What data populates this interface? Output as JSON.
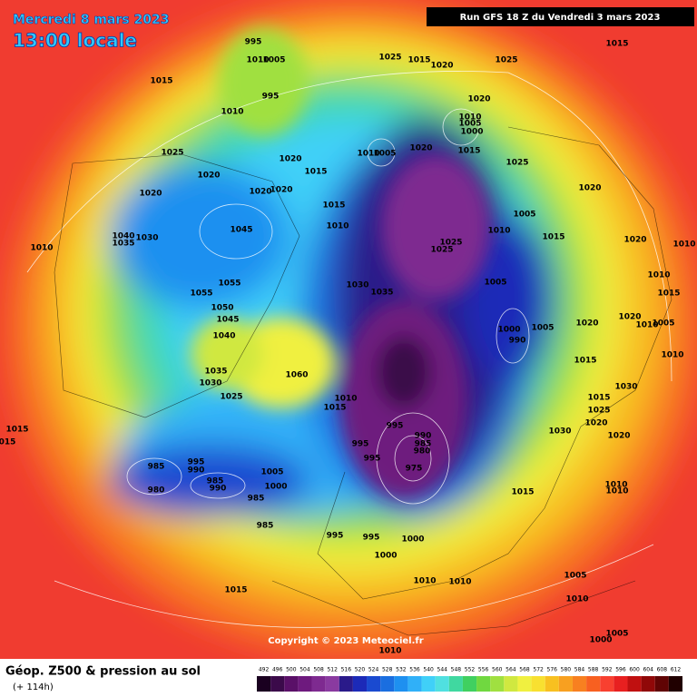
{
  "header": {
    "date": "Mercredi 8 mars 2023",
    "time": "13:00 locale",
    "run": "Run GFS 18 Z du Vendredi 3 mars 2023"
  },
  "copyright": "Copyright © 2023 Meteociel.fr",
  "legend": {
    "title": "Géop. Z500 & pression au sol",
    "lead": "(+ 114h)",
    "ticks": [
      492,
      496,
      500,
      504,
      508,
      512,
      516,
      520,
      524,
      528,
      532,
      536,
      540,
      544,
      548,
      552,
      556,
      560,
      564,
      568,
      572,
      576,
      580,
      584,
      588,
      592,
      596,
      600,
      604,
      608,
      612
    ],
    "colors": [
      "#1a0020",
      "#3b0a4a",
      "#5a1068",
      "#6e1a7e",
      "#7e2a90",
      "#8a3aa0",
      "#2a1a8a",
      "#1c2ab8",
      "#1a4ad0",
      "#1a6ee0",
      "#1e90f0",
      "#30b0f8",
      "#40d0f8",
      "#50e0e0",
      "#40d8a0",
      "#40d060",
      "#70d840",
      "#a0e040",
      "#d0e840",
      "#f0f040",
      "#f8e030",
      "#f8c020",
      "#f8a020",
      "#f88020",
      "#f86020",
      "#f84030",
      "#e82020",
      "#c01010",
      "#900808",
      "#600404",
      "#200000"
    ]
  },
  "pressure_labels": [
    "995",
    "1015",
    "1010",
    "1005",
    "995",
    "1010",
    "1025",
    "1020",
    "1020",
    "1020",
    "1020",
    "1020",
    "1015",
    "1015",
    "1010",
    "1025",
    "1015",
    "1020",
    "1025",
    "1015",
    "1020",
    "1010",
    "1005",
    "1000",
    "1015",
    "1010",
    "1005",
    "1020",
    "1025",
    "1020",
    "1005",
    "1010",
    "1015",
    "1020",
    "1010",
    "1025",
    "1025",
    "1005",
    "1030",
    "1035",
    "1045",
    "1040",
    "1035",
    "1030",
    "1010",
    "1055",
    "1055",
    "1050",
    "1045",
    "1040",
    "1035",
    "1030",
    "1060",
    "1025",
    "1010",
    "1015",
    "1000",
    "990",
    "1005",
    "1020",
    "1020",
    "1015",
    "1010",
    "1010",
    "1015",
    "1010",
    "1005",
    "1030",
    "1015",
    "1025",
    "1020",
    "1020",
    "1030",
    "995",
    "990",
    "985",
    "980",
    "995",
    "995",
    "975",
    "985",
    "980",
    "995",
    "990",
    "985",
    "990",
    "1005",
    "1000",
    "985",
    "985",
    "995",
    "995",
    "1000",
    "1000",
    "1010",
    "1010",
    "1015",
    "1015",
    "015",
    "1010",
    "1010",
    "1005",
    "1010",
    "1015",
    "1005",
    "1000",
    "1010"
  ]
}
